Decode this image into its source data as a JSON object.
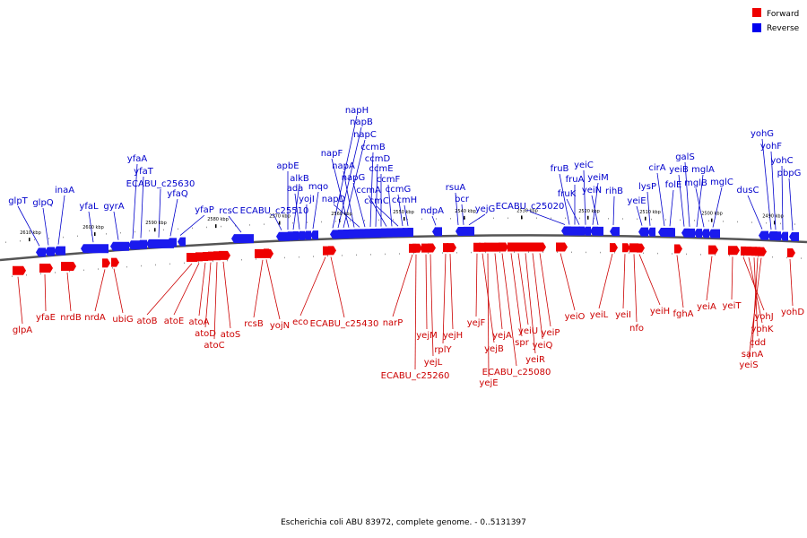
{
  "caption": "Escherichia coli ABU 83972, complete genome. - 0..5131397",
  "legend": [
    {
      "label": "Forward",
      "color": "#ee0000"
    },
    {
      "label": "Reverse",
      "color": "#0000ee"
    }
  ],
  "colors": {
    "forward": "#ee0000",
    "reverse": "#1a1aee",
    "forward_text": "#cc0000",
    "reverse_text": "#0000cc",
    "backbone": "#555555"
  },
  "kbp_ticks": [
    "2610 kbp",
    "2600 kbp",
    "2590 kbp",
    "2580 kbp",
    "2570 kbp",
    "2560 kbp",
    "2550 kbp",
    "2540 kbp",
    "2530 kbp",
    "2520 kbp",
    "2510 kbp",
    "2500 kbp",
    "2490 kbp"
  ],
  "reverse_genes": [
    "glpT",
    "glpQ",
    "inaA",
    "yfaL",
    "gyrA",
    "yfaA",
    "yfaT",
    "ECABU_c25630",
    "yfaQ",
    "yfaP",
    "rcsC",
    "ECABU_c25510",
    "apbE",
    "alkB",
    "ada",
    "yojI",
    "mqo",
    "napH",
    "napB",
    "napC",
    "napF",
    "napA",
    "napD",
    "napG",
    "ccmB",
    "ccmD",
    "ccmE",
    "ccmA",
    "ccmF",
    "ccmC",
    "ccmG",
    "ccmH",
    "ndpA",
    "rsuA",
    "bcr",
    "yejG",
    "ECABU_c25020",
    "fruB",
    "fruA",
    "fruK",
    "yeiC",
    "yeiM",
    "yeiN",
    "rihB",
    "yeiE",
    "lysP",
    "cirA",
    "folE",
    "yeiB",
    "galS",
    "mglA",
    "mglB",
    "mglC",
    "dusC",
    "yohG",
    "yohF",
    "yohC",
    "pbpG"
  ],
  "forward_genes": [
    "glpA",
    "yfaE",
    "nrdB",
    "nrdA",
    "ubiG",
    "atoB",
    "atoE",
    "atoA",
    "atoD",
    "atoC",
    "atoS",
    "rcsB",
    "yojN",
    "eco",
    "ECABU_c25430",
    "narP",
    "yejM",
    "yejL",
    "rplY",
    "yejH",
    "ECABU_c25260",
    "yejF",
    "yejB",
    "yejE",
    "yejA",
    "ECABU_c25080",
    "spr",
    "yeiU",
    "yeiR",
    "yeiQ",
    "yeiP",
    "yeiO",
    "yeiL",
    "yeiI",
    "nfo",
    "yeiH",
    "fghA",
    "yeiA",
    "yeiT",
    "yohJ",
    "yohK",
    "cdd",
    "sanA",
    "yeiS",
    "yohD"
  ]
}
